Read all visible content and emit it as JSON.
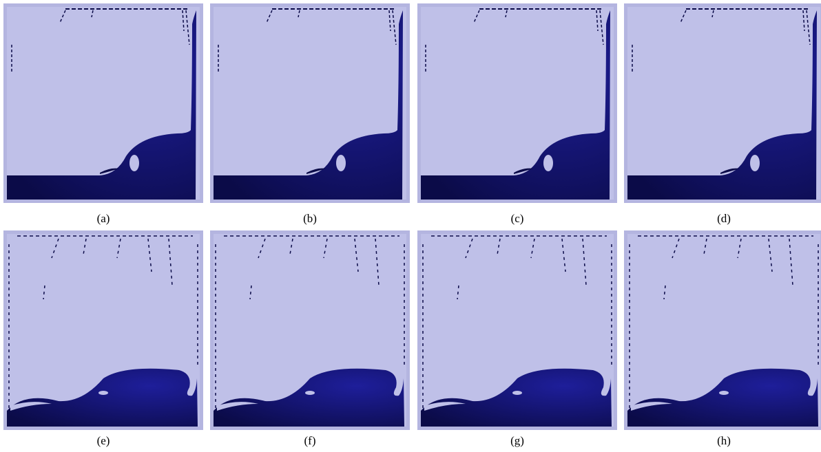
{
  "captions": [
    "(a)",
    "(b)",
    "(c)",
    "(d)",
    "(e)",
    "(f)",
    "(g)",
    "(h)"
  ]
}
